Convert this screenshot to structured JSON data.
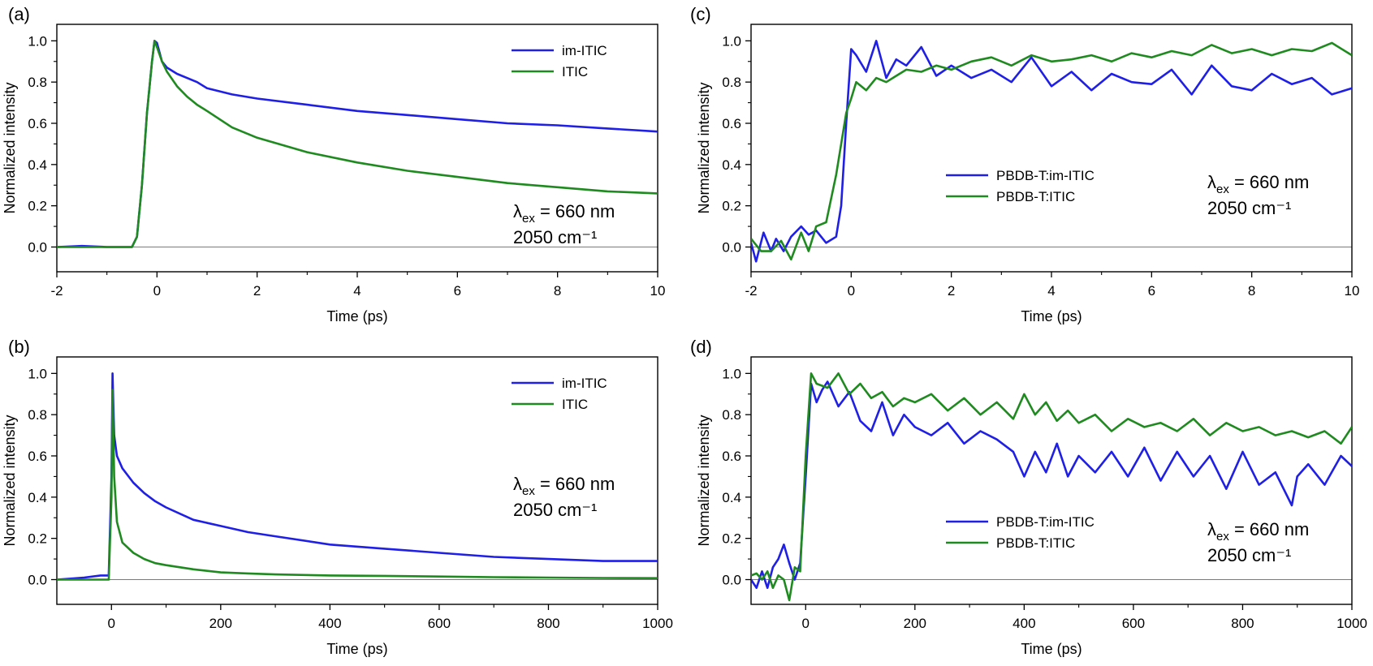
{
  "chart_data": [
    {
      "panel_label": "(a)",
      "type": "line",
      "xlabel": "Time (ps)",
      "ylabel": "Normalized intensity",
      "xlim": [
        -2,
        10
      ],
      "ylim": [
        -0.12,
        1.08
      ],
      "xticks": [
        -2,
        0,
        2,
        4,
        6,
        8,
        10
      ],
      "yticks": [
        0.0,
        0.2,
        0.4,
        0.6,
        0.8,
        1.0
      ],
      "zero_line": true,
      "legend": {
        "placement": "top-right",
        "entries": [
          "im-ITIC",
          "ITIC"
        ]
      },
      "annotation": {
        "line1_prefix": "λ",
        "line1_sub": "ex",
        "line1_suffix": " = 660 nm",
        "line2": "2050 cm⁻¹"
      },
      "series": [
        {
          "name": "im-ITIC",
          "color": "#1f1fe6",
          "x": [
            -2,
            -1.5,
            -1,
            -0.5,
            -0.4,
            -0.3,
            -0.2,
            -0.1,
            -0.05,
            0,
            0.1,
            0.2,
            0.4,
            0.6,
            0.8,
            1,
            1.5,
            2,
            3,
            4,
            5,
            6,
            7,
            8,
            9,
            10
          ],
          "y": [
            0,
            0.005,
            0,
            0,
            0.05,
            0.3,
            0.65,
            0.9,
            1.0,
            0.99,
            0.9,
            0.87,
            0.84,
            0.82,
            0.8,
            0.77,
            0.74,
            0.72,
            0.69,
            0.66,
            0.64,
            0.62,
            0.6,
            0.59,
            0.575,
            0.56
          ]
        },
        {
          "name": "ITIC",
          "color": "#1f8a1f",
          "x": [
            -2,
            -1.5,
            -1,
            -0.5,
            -0.4,
            -0.3,
            -0.2,
            -0.1,
            -0.05,
            0,
            0.1,
            0.2,
            0.4,
            0.6,
            0.8,
            1,
            1.5,
            2,
            3,
            4,
            5,
            6,
            7,
            8,
            9,
            10
          ],
          "y": [
            0,
            0,
            0,
            0,
            0.05,
            0.3,
            0.65,
            0.9,
            1.0,
            0.97,
            0.9,
            0.85,
            0.78,
            0.73,
            0.69,
            0.66,
            0.58,
            0.53,
            0.46,
            0.41,
            0.37,
            0.34,
            0.31,
            0.29,
            0.27,
            0.26
          ]
        }
      ]
    },
    {
      "panel_label": "(b)",
      "type": "line",
      "xlabel": "Time (ps)",
      "ylabel": "Normalized intensity",
      "xlim": [
        -100,
        1000
      ],
      "ylim": [
        -0.12,
        1.08
      ],
      "xticks": [
        0,
        200,
        400,
        600,
        800,
        1000
      ],
      "yticks": [
        0.0,
        0.2,
        0.4,
        0.6,
        0.8,
        1.0
      ],
      "zero_line": true,
      "legend": {
        "placement": "top-right",
        "entries": [
          "im-ITIC",
          "ITIC"
        ]
      },
      "annotation": {
        "line1_prefix": "λ",
        "line1_sub": "ex",
        "line1_suffix": " = 660 nm",
        "line2": "2050 cm⁻¹"
      },
      "series": [
        {
          "name": "im-ITIC",
          "color": "#1f1fe6",
          "x": [
            -100,
            -50,
            -20,
            -5,
            0,
            2,
            5,
            10,
            20,
            40,
            60,
            80,
            100,
            150,
            200,
            250,
            300,
            400,
            500,
            600,
            700,
            800,
            900,
            1000
          ],
          "y": [
            0,
            0.01,
            0.02,
            0.02,
            0.5,
            1.0,
            0.7,
            0.6,
            0.54,
            0.47,
            0.42,
            0.38,
            0.35,
            0.29,
            0.26,
            0.23,
            0.21,
            0.17,
            0.15,
            0.13,
            0.11,
            0.1,
            0.09,
            0.09
          ]
        },
        {
          "name": "ITIC",
          "color": "#1f8a1f",
          "x": [
            -100,
            -50,
            -20,
            -5,
            0,
            2,
            5,
            10,
            20,
            40,
            60,
            80,
            100,
            150,
            200,
            250,
            300,
            400,
            500,
            600,
            700,
            800,
            900,
            1000
          ],
          "y": [
            0,
            0,
            0,
            0,
            0.4,
            0.92,
            0.5,
            0.28,
            0.18,
            0.13,
            0.1,
            0.08,
            0.07,
            0.05,
            0.035,
            0.03,
            0.025,
            0.02,
            0.018,
            0.015,
            0.012,
            0.01,
            0.008,
            0.007
          ]
        }
      ]
    },
    {
      "panel_label": "(c)",
      "type": "line",
      "xlabel": "Time (ps)",
      "ylabel": "Normalized intensity",
      "xlim": [
        -2,
        10
      ],
      "ylim": [
        -0.12,
        1.08
      ],
      "xticks": [
        -2,
        0,
        2,
        4,
        6,
        8,
        10
      ],
      "yticks": [
        0.0,
        0.2,
        0.4,
        0.6,
        0.8,
        1.0
      ],
      "zero_line": true,
      "legend": {
        "placement": "center",
        "entries": [
          "PBDB-T:im-ITIC",
          "PBDB-T:ITIC"
        ]
      },
      "annotation": {
        "line1_prefix": "λ",
        "line1_sub": "ex",
        "line1_suffix": " = 660 nm",
        "line2": "2050 cm⁻¹"
      },
      "series": [
        {
          "name": "PBDB-T:im-ITIC",
          "color": "#1f1fe6",
          "x": [
            -2,
            -1.9,
            -1.75,
            -1.6,
            -1.5,
            -1.35,
            -1.2,
            -1.0,
            -0.85,
            -0.7,
            -0.5,
            -0.3,
            -0.2,
            -0.1,
            0,
            0.1,
            0.3,
            0.5,
            0.7,
            0.9,
            1.1,
            1.4,
            1.7,
            2,
            2.4,
            2.8,
            3.2,
            3.6,
            4,
            4.4,
            4.8,
            5.2,
            5.6,
            6,
            6.4,
            6.8,
            7.2,
            7.6,
            8,
            8.4,
            8.8,
            9.2,
            9.6,
            10
          ],
          "y": [
            0.02,
            -0.07,
            0.07,
            -0.02,
            0.04,
            -0.02,
            0.05,
            0.1,
            0.06,
            0.08,
            0.02,
            0.05,
            0.2,
            0.6,
            0.96,
            0.93,
            0.85,
            1.0,
            0.82,
            0.91,
            0.88,
            0.97,
            0.83,
            0.88,
            0.82,
            0.86,
            0.8,
            0.92,
            0.78,
            0.85,
            0.76,
            0.84,
            0.8,
            0.79,
            0.86,
            0.74,
            0.88,
            0.78,
            0.76,
            0.84,
            0.79,
            0.82,
            0.74,
            0.77
          ]
        },
        {
          "name": "PBDB-T:ITIC",
          "color": "#1f8a1f",
          "x": [
            -2,
            -1.8,
            -1.6,
            -1.4,
            -1.2,
            -1.0,
            -0.85,
            -0.7,
            -0.5,
            -0.3,
            -0.2,
            -0.1,
            0,
            0.1,
            0.3,
            0.5,
            0.7,
            0.9,
            1.1,
            1.4,
            1.7,
            2,
            2.4,
            2.8,
            3.2,
            3.6,
            4,
            4.4,
            4.8,
            5.2,
            5.6,
            6,
            6.4,
            6.8,
            7.2,
            7.6,
            8,
            8.4,
            8.8,
            9.2,
            9.6,
            10
          ],
          "y": [
            0.04,
            -0.02,
            -0.02,
            0.03,
            -0.06,
            0.07,
            -0.02,
            0.1,
            0.12,
            0.35,
            0.5,
            0.65,
            0.72,
            0.8,
            0.76,
            0.82,
            0.8,
            0.83,
            0.86,
            0.85,
            0.88,
            0.86,
            0.9,
            0.92,
            0.88,
            0.93,
            0.9,
            0.91,
            0.93,
            0.9,
            0.94,
            0.92,
            0.95,
            0.93,
            0.98,
            0.94,
            0.96,
            0.93,
            0.96,
            0.95,
            0.99,
            0.93
          ]
        }
      ]
    },
    {
      "panel_label": "(d)",
      "type": "line",
      "xlabel": "Time (ps)",
      "ylabel": "Normalized intensity",
      "xlim": [
        -100,
        1000
      ],
      "ylim": [
        -0.12,
        1.08
      ],
      "xticks": [
        0,
        200,
        400,
        600,
        800,
        1000
      ],
      "yticks": [
        0.0,
        0.2,
        0.4,
        0.6,
        0.8,
        1.0
      ],
      "zero_line": true,
      "legend": {
        "placement": "center-bottom",
        "entries": [
          "PBDB-T:im-ITIC",
          "PBDB-T:ITIC"
        ]
      },
      "annotation": {
        "line1_prefix": "λ",
        "line1_sub": "ex",
        "line1_suffix": " = 660 nm",
        "line2": "2050 cm⁻¹"
      },
      "series": [
        {
          "name": "PBDB-T:im-ITIC",
          "color": "#1f1fe6",
          "x": [
            -100,
            -90,
            -80,
            -70,
            -60,
            -50,
            -40,
            -30,
            -20,
            -10,
            0,
            10,
            20,
            30,
            40,
            60,
            80,
            100,
            120,
            140,
            160,
            180,
            200,
            230,
            260,
            290,
            320,
            350,
            380,
            400,
            420,
            440,
            460,
            480,
            500,
            530,
            560,
            590,
            620,
            650,
            680,
            710,
            740,
            770,
            800,
            830,
            860,
            890,
            900,
            920,
            950,
            980,
            1000
          ],
          "y": [
            0.0,
            -0.04,
            0.04,
            -0.04,
            0.06,
            0.1,
            0.17,
            0.08,
            0.0,
            0.08,
            0.5,
            0.95,
            0.86,
            0.92,
            0.96,
            0.84,
            0.91,
            0.77,
            0.72,
            0.86,
            0.7,
            0.8,
            0.74,
            0.7,
            0.76,
            0.66,
            0.72,
            0.68,
            0.62,
            0.5,
            0.62,
            0.52,
            0.66,
            0.5,
            0.6,
            0.52,
            0.62,
            0.5,
            0.64,
            0.48,
            0.62,
            0.5,
            0.6,
            0.44,
            0.62,
            0.46,
            0.52,
            0.36,
            0.5,
            0.56,
            0.46,
            0.6,
            0.55
          ]
        },
        {
          "name": "PBDB-T:ITIC",
          "color": "#1f8a1f",
          "x": [
            -100,
            -90,
            -80,
            -70,
            -60,
            -50,
            -40,
            -30,
            -20,
            -10,
            0,
            10,
            20,
            40,
            60,
            80,
            100,
            120,
            140,
            160,
            180,
            200,
            230,
            260,
            290,
            320,
            350,
            380,
            400,
            420,
            440,
            460,
            480,
            500,
            530,
            560,
            590,
            620,
            650,
            680,
            710,
            740,
            770,
            800,
            830,
            860,
            890,
            920,
            950,
            980,
            1000
          ],
          "y": [
            0.02,
            0.03,
            0.0,
            0.04,
            -0.04,
            0.02,
            0.0,
            -0.1,
            0.06,
            0.04,
            0.6,
            1.0,
            0.95,
            0.93,
            1.0,
            0.9,
            0.95,
            0.88,
            0.91,
            0.84,
            0.88,
            0.86,
            0.9,
            0.82,
            0.88,
            0.8,
            0.86,
            0.78,
            0.9,
            0.8,
            0.86,
            0.77,
            0.82,
            0.76,
            0.8,
            0.72,
            0.78,
            0.74,
            0.76,
            0.72,
            0.78,
            0.7,
            0.76,
            0.72,
            0.74,
            0.7,
            0.72,
            0.69,
            0.72,
            0.66,
            0.74
          ]
        }
      ]
    }
  ]
}
